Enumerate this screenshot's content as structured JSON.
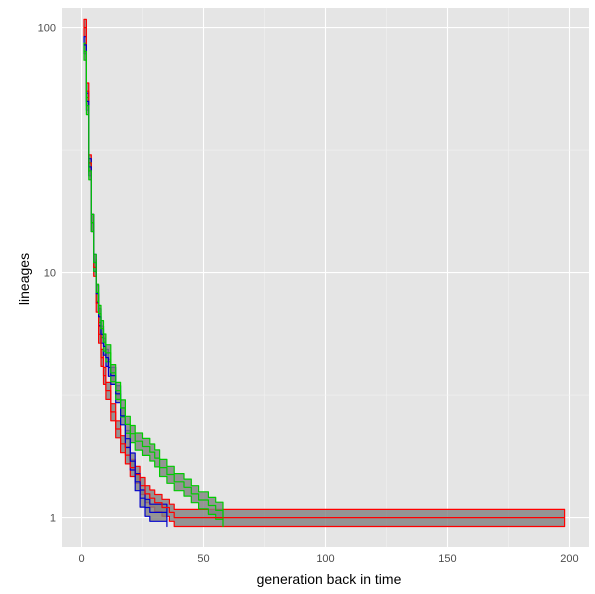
{
  "chart_data": {
    "type": "line",
    "title": "",
    "xlabel": "generation back in time",
    "ylabel": "lineages",
    "x_ticks": [
      0,
      50,
      100,
      150,
      200
    ],
    "y_ticks": [
      1,
      10,
      100
    ],
    "xlim": [
      -8,
      208
    ],
    "ylim_log10": [
      -0.12,
      2.08
    ],
    "y_scale": "log10",
    "grid": true,
    "legend": "none",
    "band_color": "#7f7f7f",
    "series": [
      {
        "color": "#ff0000",
        "points": [
          [
            1,
            100
          ],
          [
            2,
            55
          ],
          [
            3,
            28
          ],
          [
            4,
            16
          ],
          [
            5,
            10.5
          ],
          [
            6,
            7.5
          ],
          [
            7,
            5.6
          ],
          [
            8,
            4.5
          ],
          [
            9,
            3.8
          ],
          [
            10,
            3.3
          ],
          [
            12,
            2.7
          ],
          [
            14,
            2.3
          ],
          [
            16,
            2.0
          ],
          [
            18,
            1.8
          ],
          [
            20,
            1.6
          ],
          [
            22,
            1.5
          ],
          [
            24,
            1.35
          ],
          [
            26,
            1.25
          ],
          [
            28,
            1.2
          ],
          [
            30,
            1.15
          ],
          [
            33,
            1.1
          ],
          [
            36,
            1.05
          ],
          [
            38,
            1.0
          ],
          [
            198,
            1.0
          ]
        ]
      },
      {
        "color": "#0000cc",
        "points": [
          [
            1,
            85
          ],
          [
            2,
            50
          ],
          [
            3,
            27
          ],
          [
            4,
            16
          ],
          [
            5,
            11
          ],
          [
            6,
            8.2
          ],
          [
            7,
            6.6
          ],
          [
            8,
            5.6
          ],
          [
            9,
            5.0
          ],
          [
            10,
            4.5
          ],
          [
            11,
            4.1
          ],
          [
            12,
            3.8
          ],
          [
            14,
            3.2
          ],
          [
            16,
            2.6
          ],
          [
            18,
            2.1
          ],
          [
            20,
            1.7
          ],
          [
            22,
            1.4
          ],
          [
            24,
            1.2
          ],
          [
            26,
            1.1
          ],
          [
            28,
            1.05
          ],
          [
            35,
            1.0
          ]
        ]
      },
      {
        "color": "#00cc00",
        "points": [
          [
            1,
            80
          ],
          [
            2,
            48
          ],
          [
            3,
            26
          ],
          [
            4,
            16
          ],
          [
            5,
            11
          ],
          [
            6,
            8.3
          ],
          [
            7,
            6.8
          ],
          [
            8,
            5.9
          ],
          [
            9,
            5.2
          ],
          [
            10,
            4.7
          ],
          [
            12,
            3.9
          ],
          [
            14,
            3.3
          ],
          [
            16,
            2.8
          ],
          [
            18,
            2.4
          ],
          [
            20,
            2.2
          ],
          [
            22,
            2.05
          ],
          [
            25,
            1.95
          ],
          [
            28,
            1.85
          ],
          [
            30,
            1.75
          ],
          [
            32,
            1.6
          ],
          [
            35,
            1.5
          ],
          [
            38,
            1.4
          ],
          [
            42,
            1.33
          ],
          [
            45,
            1.25
          ],
          [
            48,
            1.18
          ],
          [
            52,
            1.12
          ],
          [
            55,
            1.07
          ],
          [
            58,
            1.0
          ]
        ]
      }
    ]
  }
}
